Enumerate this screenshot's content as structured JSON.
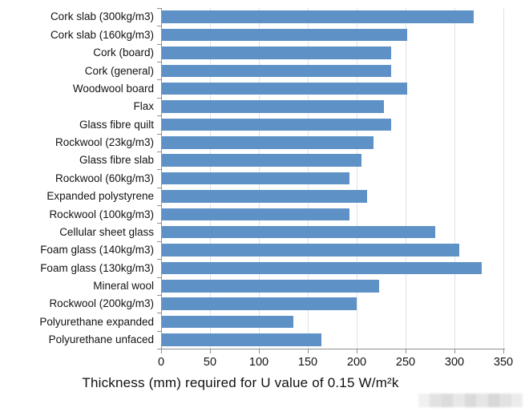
{
  "chart_data": {
    "type": "bar",
    "orientation": "horizontal",
    "title": "",
    "xlabel": "Thickness (mm) required for U value of 0.15 W/m²k",
    "ylabel": "",
    "xlim": [
      0,
      350
    ],
    "x_ticks": [
      0,
      50,
      100,
      150,
      200,
      250,
      300,
      350
    ],
    "grid": true,
    "legend": false,
    "categories": [
      "Cork slab (300kg/m3)",
      "Cork slab (160kg/m3)",
      "Cork (board)",
      "Cork (general)",
      "Woodwool board",
      "Flax",
      "Glass fibre quilt",
      "Rockwool (23kg/m3)",
      "Glass fibre slab",
      "Rockwool (60kg/m3)",
      "Expanded polystyrene",
      "Rockwool (100kg/m3)",
      "Cellular sheet glass",
      "Foam glass (140kg/m3)",
      "Foam glass (130kg/m3)",
      "Mineral wool",
      "Rockwool (200kg/m3)",
      "Polyurethane expanded",
      "Polyurethane unfaced"
    ],
    "values": [
      320,
      252,
      235,
      235,
      252,
      228,
      235,
      217,
      205,
      193,
      211,
      193,
      280,
      305,
      328,
      223,
      200,
      135,
      164
    ]
  },
  "style": {
    "bar_color": "#5e92c6",
    "gridline_color": "#dde2e8",
    "axis_color": "#8f8f8f",
    "background": "#ffffff",
    "watermark_shades": [
      "#f0f0f0",
      "#e2e2e2",
      "#dcdcdc",
      "#e8e8e8",
      "#dadada",
      "#e5e5e5",
      "#d8d8d8",
      "#e2e2e2",
      "#ececec"
    ]
  }
}
